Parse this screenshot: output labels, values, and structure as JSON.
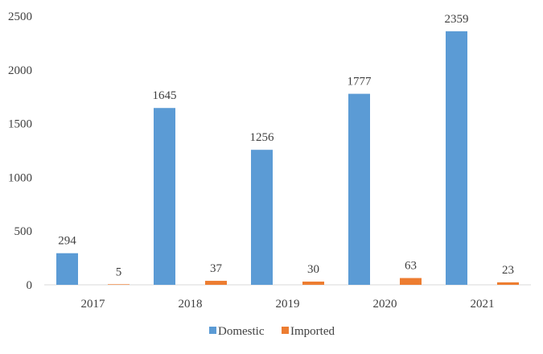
{
  "chart_data": {
    "type": "bar",
    "title": "",
    "xlabel": "",
    "ylabel": "",
    "categories": [
      "2017",
      "2018",
      "2019",
      "2020",
      "2021"
    ],
    "series": [
      {
        "name": "Domestic",
        "color": "#5B9BD5",
        "values": [
          294,
          1645,
          1256,
          1777,
          2359
        ]
      },
      {
        "name": "Imported",
        "color": "#ED7D31",
        "values": [
          5,
          37,
          30,
          63,
          23
        ]
      }
    ],
    "y_ticks": [
      "0",
      "500",
      "1000",
      "1500",
      "2000",
      "2500"
    ],
    "ylim": [
      0,
      2500
    ],
    "grid": false,
    "legend_position": "bottom"
  }
}
